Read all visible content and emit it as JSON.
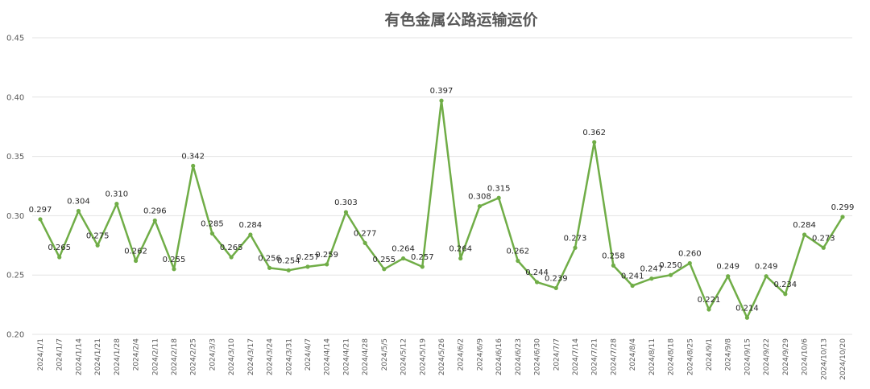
{
  "chart_data": {
    "type": "line",
    "title": "有色金属公路运输运价",
    "xlabel": "",
    "ylabel": "",
    "ylim": [
      0.2,
      0.45
    ],
    "yticks": [
      "0.20",
      "0.25",
      "0.30",
      "0.35",
      "0.40",
      "0.45"
    ],
    "grid": true,
    "legend": "none",
    "color": "#70ad47",
    "categories": [
      "2024/1/1",
      "2024/1/7",
      "2024/1/14",
      "2024/1/21",
      "2024/1/28",
      "2024/2/4",
      "2024/2/11",
      "2024/2/18",
      "2024/2/25",
      "2024/3/3",
      "2024/3/10",
      "2024/3/17",
      "2024/3/24",
      "2024/3/31",
      "2024/4/7",
      "2024/4/14",
      "2024/4/21",
      "2024/4/28",
      "2024/5/5",
      "2024/5/12",
      "2024/5/19",
      "2024/5/26",
      "2024/6/2",
      "2024/6/9",
      "2024/6/16",
      "2024/6/23",
      "2024/6/30",
      "2024/7/7",
      "2024/7/14",
      "2024/7/21",
      "2024/7/28",
      "2024/8/4",
      "2024/8/11",
      "2024/8/18",
      "2024/8/25",
      "2024/9/1",
      "2024/9/8",
      "2024/9/15",
      "2024/9/22",
      "2024/9/29",
      "2024/10/6",
      "2024/10/13",
      "2024/10/20"
    ],
    "values": [
      0.297,
      0.265,
      0.304,
      0.275,
      0.31,
      0.262,
      0.296,
      0.255,
      0.342,
      0.285,
      0.265,
      0.284,
      0.256,
      0.254,
      0.257,
      0.259,
      0.303,
      0.277,
      0.255,
      0.264,
      0.257,
      0.397,
      0.264,
      0.308,
      0.315,
      0.262,
      0.244,
      0.239,
      0.273,
      0.362,
      0.258,
      0.241,
      0.247,
      0.25,
      0.26,
      0.221,
      0.249,
      0.214,
      0.249,
      0.234,
      0.284,
      0.273,
      0.299
    ],
    "data_labels": [
      "0.297",
      "0.265",
      "0.304",
      "0.275",
      "0.310",
      "0.262",
      "0.296",
      "0.255",
      "0.342",
      "0.285",
      "0.265",
      "0.284",
      "0.256",
      "0.254",
      "0.257",
      "0.259",
      "0.303",
      "0.277",
      "0.255",
      "0.264",
      "0.257",
      "0.397",
      "0.264",
      "0.308",
      "0.315",
      "0.262",
      "0.244",
      "0.239",
      "0.273",
      "0.362",
      "0.258",
      "0.241",
      "0.247",
      "0.250",
      "0.260",
      "0.221",
      "0.249",
      "0.214",
      "0.249",
      "0.234",
      "0.284",
      "0.273",
      "0.299"
    ]
  }
}
